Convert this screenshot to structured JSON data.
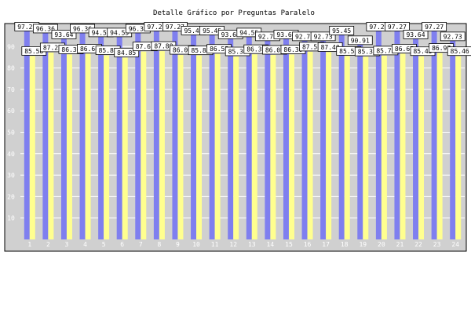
{
  "chart_data": {
    "type": "bar",
    "title": "Detalle Gráfico por Preguntas Paralelo",
    "categories": [
      "1",
      "2",
      "3",
      "4",
      "5",
      "6",
      "7",
      "8",
      "9",
      "10",
      "11",
      "12",
      "13",
      "14",
      "15",
      "16",
      "17",
      "18",
      "19",
      "20",
      "21",
      "22",
      "23",
      "24"
    ],
    "series": [
      {
        "color": "#7f7fef",
        "values": [
          97.27,
          96.36,
          93.64,
          96.36,
          94.55,
          94.55,
          96.36,
          97.27,
          97.27,
          95.45,
          95.45,
          93.64,
          94.55,
          92.73,
          93.64,
          92.73,
          92.73,
          95.45,
          90.91,
          97.27,
          97.27,
          93.64,
          97.27,
          92.73
        ]
      },
      {
        "color": "#ffff8f",
        "values": [
          85.58,
          87.22,
          86.3,
          86.64,
          85.87,
          84.85,
          87.67,
          87.88,
          86.06,
          85.84,
          86.55,
          85.36,
          86.39,
          86.08,
          86.3,
          87.58,
          87.4,
          85.58,
          85.3,
          85.76,
          86.67,
          85.45,
          86.97,
          85.46
        ]
      }
    ],
    "xlabel": "",
    "ylabel": "",
    "yticks": [
      10,
      20,
      30,
      40,
      50,
      60,
      70,
      80,
      90
    ],
    "ylim": [
      0,
      100
    ],
    "grid": true,
    "legend": "none"
  }
}
